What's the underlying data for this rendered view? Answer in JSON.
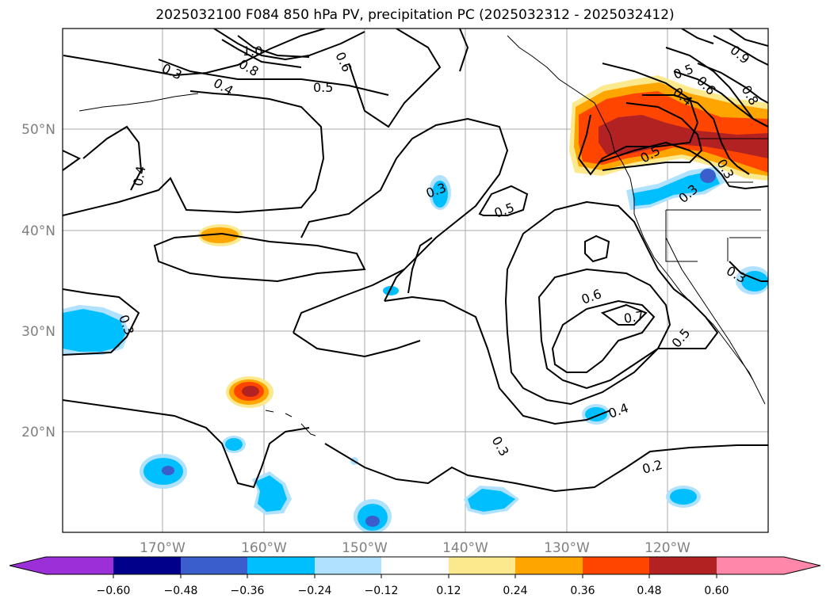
{
  "title": "2025032100 F084 850 hPa PV, precipitation PC (2025032312 - 2025032412)",
  "map": {
    "projection": "lat-lon",
    "lon_range": [
      180,
      -110
    ],
    "lat_range": [
      10,
      60
    ],
    "lon_ticks": [
      "170°W",
      "160°W",
      "150°W",
      "140°W",
      "130°W",
      "120°W"
    ],
    "lat_ticks": [
      "50°N",
      "40°N",
      "30°N",
      "20°N"
    ],
    "grid": true
  },
  "colorbar": {
    "ticks": [
      "−0.60",
      "−0.48",
      "−0.36",
      "−0.24",
      "−0.12",
      "0.12",
      "0.24",
      "0.36",
      "0.48",
      "0.60"
    ],
    "colors": {
      "under": "#9b30d9",
      "bins": [
        "#00008b",
        "#3a5fcd",
        "#00bfff",
        "#b0e2ff",
        "#ffffff",
        "#fce98d",
        "#ffa500",
        "#ff4500",
        "#b22222"
      ],
      "over": "#ff88aa"
    }
  },
  "contour_labels": [
    "1.0",
    "0.8",
    "0.3",
    "0.4",
    "0.6",
    "0.5",
    "0.4",
    "0.3",
    "0.5",
    "0.6",
    "0.7",
    "0.3",
    "0.2",
    "0.4",
    "0.5",
    "0.8",
    "0.9",
    "0.6",
    "0.5",
    "0.3",
    "0.3",
    "0.3",
    "0.5",
    "0.3",
    "0.4"
  ]
}
